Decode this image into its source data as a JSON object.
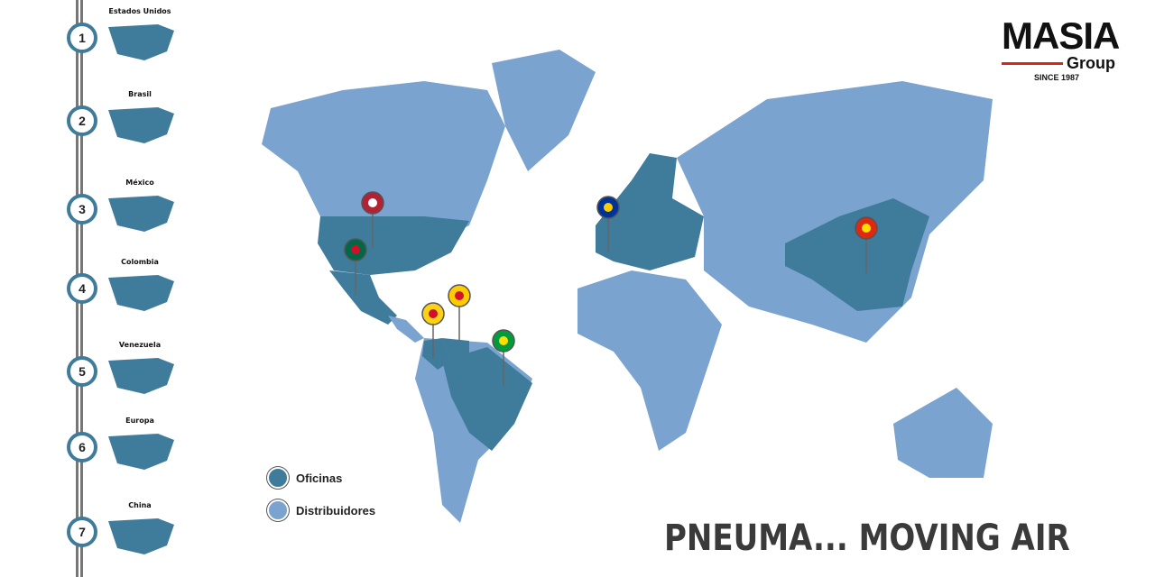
{
  "sidebar": {
    "items": [
      {
        "num": "1",
        "label": "Estados Unidos"
      },
      {
        "num": "2",
        "label": "Brasil"
      },
      {
        "num": "3",
        "label": "México"
      },
      {
        "num": "4",
        "label": "Colombia"
      },
      {
        "num": "5",
        "label": "Venezuela"
      },
      {
        "num": "6",
        "label": "Europa"
      },
      {
        "num": "7",
        "label": "China"
      }
    ]
  },
  "logo": {
    "name": "MASIA",
    "group": "Group",
    "since": "SINCE 1987"
  },
  "legend": {
    "offices": "Oficinas",
    "distributors": "Distribuidores"
  },
  "slogan": "PNEUMA... MOVING AIR",
  "colors": {
    "offices": "#3f7b9a",
    "distributors": "#7aa3cf",
    "accent": "#d9251c"
  },
  "pins": [
    "usa-flag",
    "mexico-flag",
    "colombia-flag",
    "venezuela-flag",
    "brazil-flag",
    "eu-flag",
    "china-flag"
  ]
}
